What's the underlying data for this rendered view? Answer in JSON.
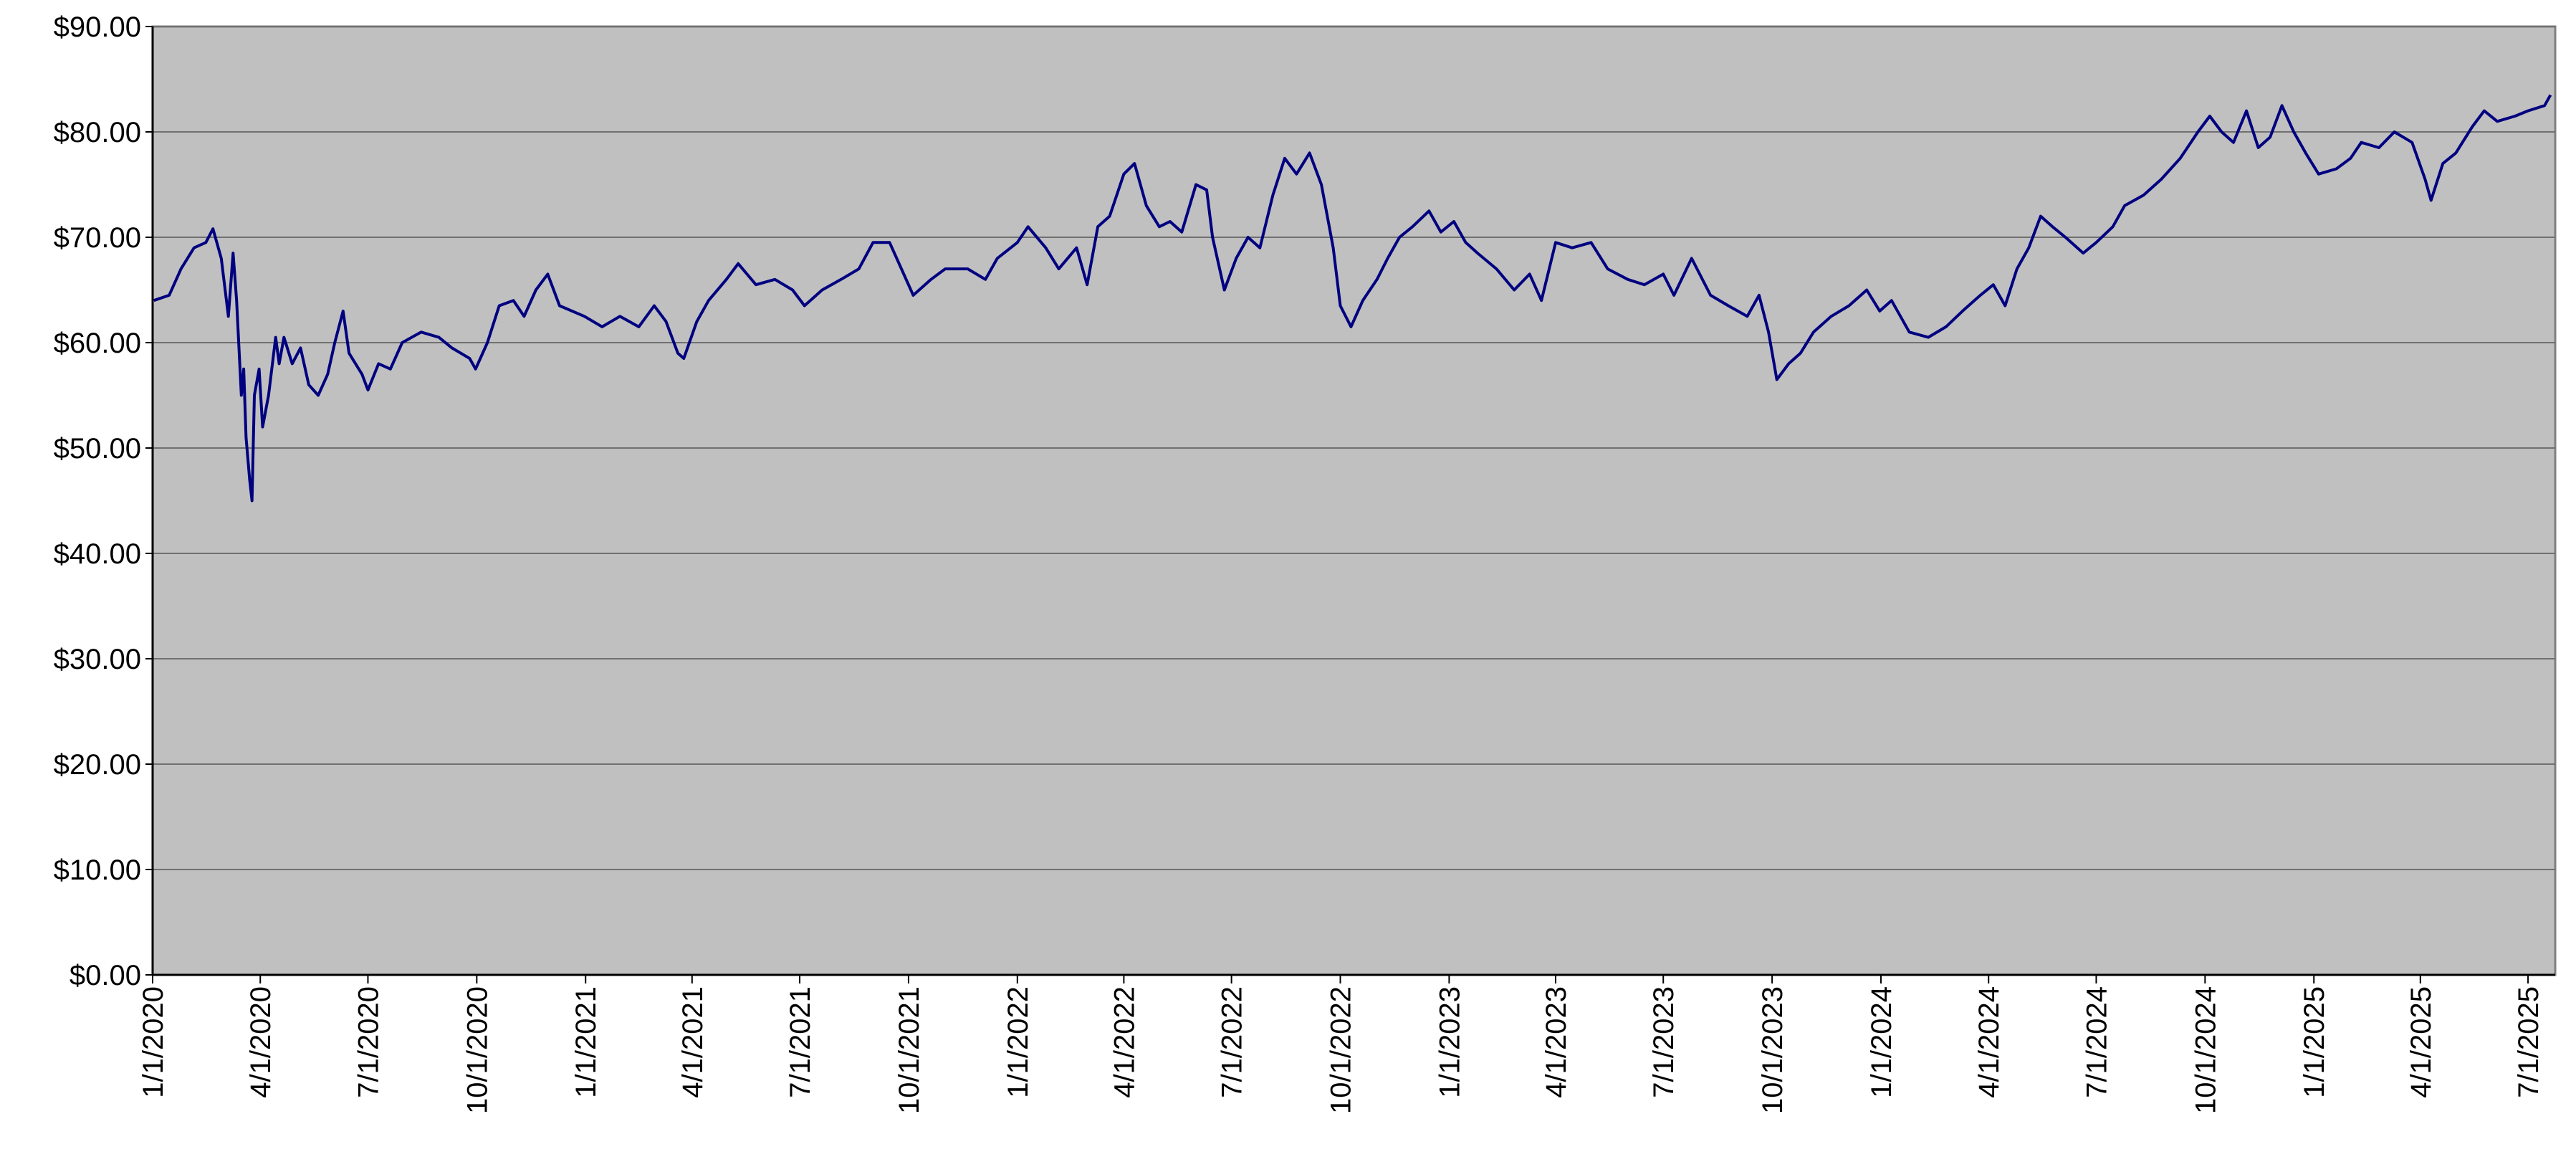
{
  "chart_data": {
    "type": "line",
    "xlim": [
      "1/1/2020",
      "7/24/2025"
    ],
    "xticks": [
      "1/1/2020",
      "4/1/2020",
      "7/1/2020",
      "10/1/2020",
      "1/1/2021",
      "4/1/2021",
      "7/1/2021",
      "10/1/2021",
      "1/1/2022",
      "4/1/2022",
      "7/1/2022",
      "10/1/2022",
      "1/1/2023",
      "4/1/2023",
      "7/1/2023",
      "10/1/2023",
      "1/1/2024",
      "4/1/2024",
      "7/1/2024",
      "10/1/2024",
      "1/1/2025",
      "4/1/2025",
      "7/1/2025"
    ],
    "ylim": [
      0,
      90
    ],
    "yticks": [
      {
        "value": 0,
        "label": "$0.00"
      },
      {
        "value": 10,
        "label": "$10.00"
      },
      {
        "value": 20,
        "label": "$20.00"
      },
      {
        "value": 30,
        "label": "$30.00"
      },
      {
        "value": 40,
        "label": "$40.00"
      },
      {
        "value": 50,
        "label": "$50.00"
      },
      {
        "value": 60,
        "label": "$60.00"
      },
      {
        "value": 70,
        "label": "$70.00"
      },
      {
        "value": 80,
        "label": "$80.00"
      },
      {
        "value": 90,
        "label": "$90.00"
      }
    ],
    "grid": true,
    "x": [
      "1/2/2020",
      "1/15/2020",
      "1/25/2020",
      "2/5/2020",
      "2/15/2020",
      "2/21/2020",
      "2/28/2020",
      "3/5/2020",
      "3/9/2020",
      "3/12/2020",
      "3/16/2020",
      "3/18/2020",
      "3/20/2020",
      "3/23/2020",
      "3/25/2020",
      "3/27/2020",
      "3/31/2020",
      "4/3/2020",
      "4/8/2020",
      "4/14/2020",
      "4/17/2020",
      "4/21/2020",
      "4/28/2020",
      "5/5/2020",
      "5/12/2020",
      "5/20/2020",
      "5/28/2020",
      "6/3/2020",
      "6/10/2020",
      "6/15/2020",
      "6/26/2020",
      "7/1/2020",
      "7/10/2020",
      "7/20/2020",
      "7/30/2020",
      "8/15/2020",
      "8/30/2020",
      "9/10/2020",
      "9/25/2020",
      "9/30/2020",
      "10/10/2020",
      "10/20/2020",
      "11/1/2020",
      "11/10/2020",
      "11/20/2020",
      "11/30/2020",
      "12/10/2020",
      "12/31/2020",
      "1/15/2021",
      "1/30/2021",
      "2/15/2021",
      "2/28/2021",
      "3/10/2021",
      "3/20/2021",
      "3/25/2021",
      "4/5/2021",
      "4/15/2021",
      "4/30/2021",
      "5/10/2021",
      "5/25/2021",
      "6/10/2021",
      "6/25/2021",
      "7/5/2021",
      "7/20/2021",
      "8/5/2021",
      "8/20/2021",
      "9/1/2021",
      "9/15/2021",
      "9/25/2021",
      "10/5/2021",
      "10/20/2021",
      "11/1/2021",
      "11/20/2021",
      "12/5/2021",
      "12/15/2021",
      "1/1/2022",
      "1/10/2022",
      "1/25/2022",
      "2/5/2022",
      "2/20/2022",
      "3/1/2022",
      "3/10/2022",
      "3/20/2022",
      "4/1/2022",
      "4/10/2022",
      "4/20/2022",
      "5/1/2022",
      "5/10/2022",
      "5/20/2022",
      "6/1/2022",
      "6/10/2022",
      "6/15/2022",
      "6/25/2022",
      "7/5/2022",
      "7/15/2022",
      "7/25/2022",
      "8/5/2022",
      "8/15/2022",
      "8/25/2022",
      "9/5/2022",
      "9/15/2022",
      "9/25/2022",
      "10/1/2022",
      "10/10/2022",
      "10/20/2022",
      "11/1/2022",
      "11/10/2022",
      "11/20/2022",
      "12/1/2022",
      "12/15/2022",
      "12/25/2022",
      "1/5/2023",
      "1/15/2023",
      "1/25/2023",
      "2/10/2023",
      "2/25/2023",
      "3/10/2023",
      "3/20/2023",
      "4/1/2023",
      "4/15/2023",
      "5/1/2023",
      "5/15/2023",
      "6/1/2023",
      "6/15/2023",
      "7/1/2023",
      "7/10/2023",
      "7/25/2023",
      "8/10/2023",
      "8/25/2023",
      "9/10/2023",
      "9/20/2023",
      "9/28/2023",
      "10/5/2023",
      "10/15/2023",
      "10/25/2023",
      "11/5/2023",
      "11/20/2023",
      "12/5/2023",
      "12/20/2023",
      "12/31/2023",
      "1/10/2024",
      "1/25/2024",
      "2/10/2024",
      "2/25/2024",
      "3/10/2024",
      "3/25/2024",
      "4/5/2024",
      "4/15/2024",
      "4/25/2024",
      "5/5/2024",
      "5/15/2024",
      "5/25/2024",
      "6/5/2024",
      "6/20/2024",
      "7/1/2024",
      "7/15/2024",
      "7/25/2024",
      "8/10/2024",
      "8/25/2024",
      "9/10/2024",
      "9/25/2024",
      "10/5/2024",
      "10/15/2024",
      "10/25/2024",
      "11/5/2024",
      "11/15/2024",
      "11/25/2024",
      "12/5/2024",
      "12/15/2024",
      "12/25/2024",
      "1/5/2025",
      "1/20/2025",
      "2/1/2025",
      "2/10/2025",
      "2/25/2025",
      "3/10/2025",
      "3/25/2025",
      "4/5/2025",
      "4/10/2025",
      "4/20/2025",
      "5/1/2025",
      "5/15/2025",
      "5/25/2025",
      "6/5/2025",
      "6/20/2025",
      "7/1/2025",
      "7/15/2025",
      "7/20/2025"
    ],
    "series": [
      {
        "color": "#000080",
        "values": [
          64,
          64.5,
          67,
          69,
          69.5,
          70.8,
          68,
          62.5,
          68.5,
          64,
          55,
          57.5,
          51,
          47,
          45,
          55,
          57.5,
          52,
          55,
          60.5,
          58,
          60.5,
          58,
          59.5,
          56,
          55,
          57,
          60,
          63,
          59,
          57,
          55.5,
          58,
          57.5,
          60,
          61,
          60.5,
          59.5,
          58.5,
          57.5,
          60,
          63.5,
          64,
          62.5,
          65,
          66.5,
          63.5,
          62.5,
          61.5,
          62.5,
          61.5,
          63.5,
          62,
          59,
          58.5,
          62,
          64,
          66,
          67.5,
          65.5,
          66,
          65,
          63.5,
          65,
          66,
          67,
          69.5,
          69.5,
          67,
          64.5,
          66,
          67,
          67,
          66,
          68,
          69.5,
          71,
          69,
          67,
          69,
          65.5,
          71,
          72,
          76,
          77,
          73,
          71,
          71.5,
          70.5,
          75,
          74.5,
          70,
          65,
          68,
          70,
          69,
          74,
          77.5,
          76,
          78,
          75,
          69,
          63.5,
          61.5,
          64,
          66,
          68,
          70,
          71,
          72.5,
          70.5,
          71.5,
          69.5,
          68.5,
          67,
          65,
          66.5,
          64,
          69.5,
          69,
          69.5,
          67,
          66,
          65.5,
          66.5,
          64.5,
          68,
          64.5,
          63.5,
          62.5,
          64.5,
          61,
          56.5,
          58,
          59,
          61,
          62.5,
          63.5,
          65,
          63,
          64,
          61,
          60.5,
          61.5,
          63,
          64.5,
          65.5,
          63.5,
          67,
          69,
          72,
          71,
          70,
          68.5,
          69.5,
          71,
          73,
          74,
          75.5,
          77.5,
          80,
          81.5,
          80,
          79,
          82,
          78.5,
          79.5,
          82.5,
          80,
          78,
          76,
          76.5,
          77.5,
          79,
          78.5,
          80,
          79,
          75.5,
          73.5,
          77,
          78,
          80.5,
          82,
          81,
          81.5,
          82,
          82.5,
          83.5
        ]
      }
    ]
  }
}
